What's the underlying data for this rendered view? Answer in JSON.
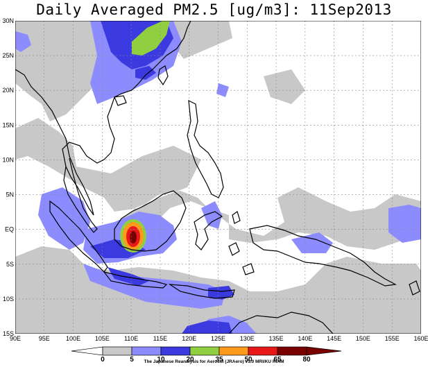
{
  "title": "Daily Averaged PM2.5 [ug/m3]: 11Sep2013",
  "credit": "The Japanese Reanalysis for Aerosol (JRAero) v1.0 MRI/KU RIAM",
  "map": {
    "lon_range": [
      90,
      160
    ],
    "lat_range": [
      -15,
      30
    ],
    "x_ticks": [
      "90E",
      "95E",
      "100E",
      "105E",
      "110E",
      "115E",
      "120E",
      "125E",
      "130E",
      "135E",
      "140E",
      "145E",
      "150E",
      "155E",
      "160E"
    ],
    "y_ticks": [
      "15S",
      "10S",
      "5S",
      "EQ",
      "5N",
      "10N",
      "15N",
      "20N",
      "25N",
      "30N"
    ]
  },
  "colorbar": {
    "labels": [
      "0",
      "5",
      "10",
      "20",
      "35",
      "50",
      "65",
      "80"
    ],
    "colors": [
      "#ffffff",
      "#c8c8c8",
      "#8c8cff",
      "#3a3ae0",
      "#90d040",
      "#ff9a1a",
      "#e81818",
      "#7a0000"
    ]
  },
  "colors": {
    "grey": "#c8c8c8",
    "light_blue": "#8c8cff",
    "blue": "#3a3ae0",
    "green": "#90d040",
    "orange": "#ff9a1a",
    "red": "#e81818",
    "dark_red": "#7a0000",
    "coast": "#000000",
    "grid": "#888888"
  }
}
